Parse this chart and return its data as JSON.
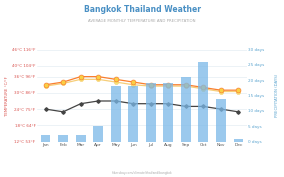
{
  "title": "Bangkok Thailand Weather",
  "subtitle": "AVERAGE MONTHLY TEMPERATURE AND PRECIPITATION",
  "months": [
    "Jan",
    "Feb",
    "Mar",
    "Apr",
    "May",
    "Jun",
    "Jul",
    "Aug",
    "Sep",
    "Oct",
    "Nov",
    "Dec"
  ],
  "day_temp": [
    33,
    34,
    36,
    36,
    35,
    34,
    33,
    33,
    33,
    32,
    31,
    31
  ],
  "night_temp": [
    24,
    23,
    26,
    27,
    27,
    26,
    26,
    26,
    25,
    25,
    24,
    23
  ],
  "rain_days": [
    2,
    2,
    2,
    5,
    18,
    18,
    19,
    19,
    21,
    26,
    14,
    1
  ],
  "snow_temp": [
    32.5,
    33.5,
    35,
    35,
    34,
    33,
    32.5,
    32.5,
    32.5,
    31.5,
    30.5,
    30.5
  ],
  "temp_ylim": [
    12,
    46
  ],
  "precip_ylim": [
    0,
    30
  ],
  "temp_ticks": [
    12,
    18,
    24,
    30,
    36,
    40,
    46
  ],
  "temp_labels": [
    "12°C 53°F",
    "18°C 64°F",
    "24°C 75°F",
    "30°C 86°F",
    "36°C 96°F",
    "40°C 104°F",
    "46°C 116°F"
  ],
  "precip_ticks": [
    0,
    5,
    10,
    15,
    20,
    25,
    30
  ],
  "precip_labels": [
    "0 days",
    "5 days",
    "10 days",
    "15 days",
    "20 days",
    "25 days",
    "30 days"
  ],
  "day_color": "#f97f2f",
  "night_color": "#444444",
  "bar_color": "#7ab8e8",
  "snow_color": "#f5c96b",
  "bg_color": "#ffffff",
  "grid_color": "#dde8f0",
  "title_color": "#4a90c4",
  "subtitle_color": "#aaaaaa",
  "left_label_color": "#d9534f",
  "right_label_color": "#5ba4cf",
  "source": "hikersbay.com/climate/thailand/bangkok",
  "left_axis_label": "TEMPERATURE °C/°F",
  "right_axis_label": "PRECIPITATION (DAYS)"
}
